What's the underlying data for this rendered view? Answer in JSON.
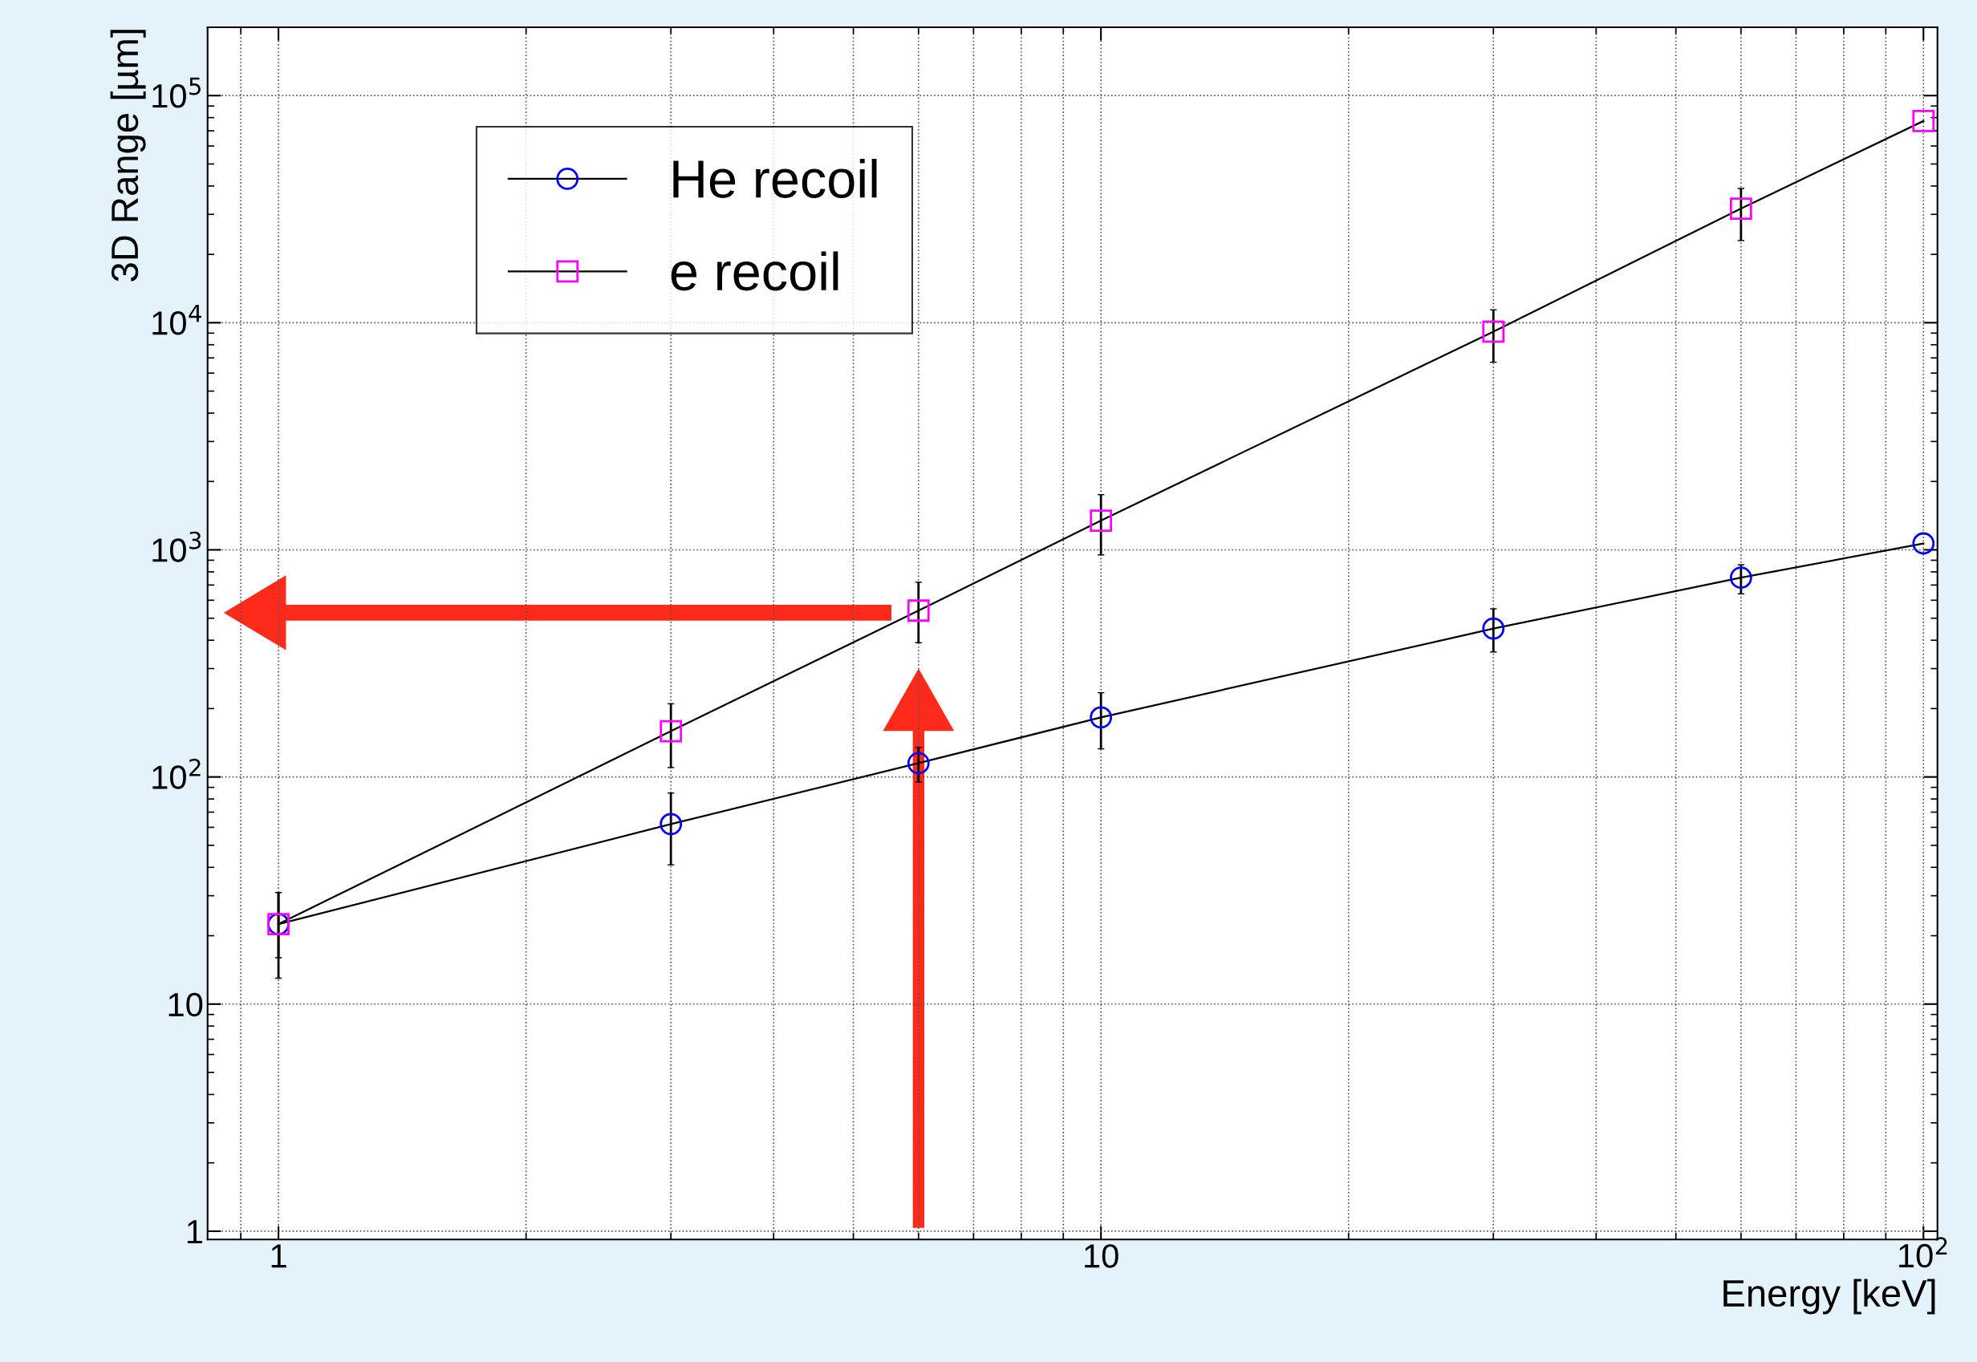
{
  "chart_data": {
    "type": "line",
    "xlabel": "Energy [keV]",
    "ylabel": "3D Range [µm]",
    "x": [
      1,
      3,
      6,
      10,
      30,
      60,
      100
    ],
    "series": [
      {
        "name": "He recoil",
        "color": "#0000ff",
        "marker": "circle",
        "values": [
          22.5,
          62,
          115,
          183,
          450,
          754,
          1067
        ],
        "errors": [
          [
            13,
            31
          ],
          [
            41,
            85
          ],
          [
            95,
            135
          ],
          [
            133,
            235
          ],
          [
            355,
            550
          ],
          [
            640,
            860
          ],
          null
        ]
      },
      {
        "name": "e recoil",
        "color": "#ff00ff",
        "marker": "square",
        "values": [
          22.5,
          159,
          540,
          1345,
          9140,
          31800,
          77300
        ],
        "errors": [
          [
            16,
            31
          ],
          [
            110,
            210
          ],
          [
            390,
            720
          ],
          [
            950,
            1750
          ],
          [
            6700,
            11400
          ],
          [
            23000,
            39000
          ],
          null
        ]
      }
    ],
    "log": "xy",
    "xlim": [
      0.82,
      104
    ],
    "ylim": [
      0.92,
      200000
    ],
    "xticks": [
      1,
      10,
      {
        "value": 100,
        "label": "10$^{2}$"
      }
    ],
    "yticks": [
      1,
      10,
      {
        "value": 100,
        "label": "10$^{2}$"
      },
      {
        "value": 1000,
        "label": "10$^{3}$"
      },
      {
        "value": 10000,
        "label": "10$^{4}$"
      },
      {
        "value": 100000,
        "label": "10$^{5}$"
      }
    ],
    "grid": true,
    "legend": "top left",
    "line_style": "solid"
  }
}
